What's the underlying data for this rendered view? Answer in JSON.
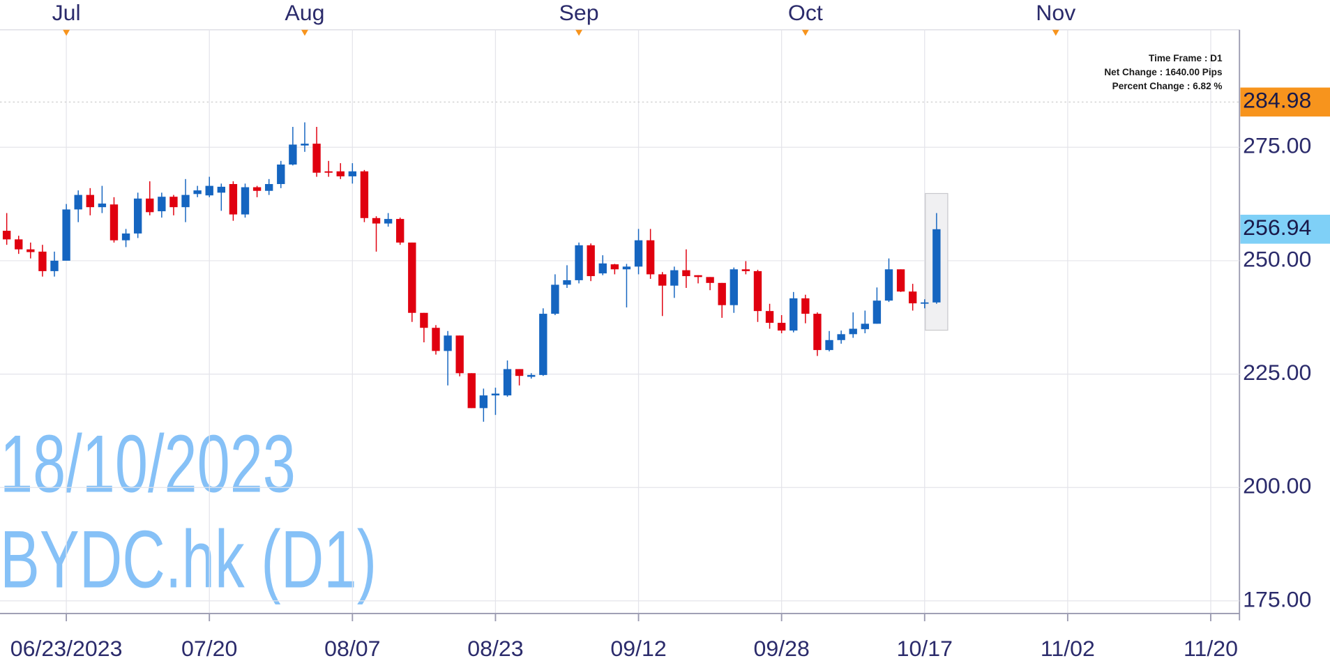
{
  "chart_data": {
    "type": "candlestick",
    "categories": [
      null,
      null,
      null,
      null,
      null,
      "06/23/2023",
      null,
      null,
      null,
      null,
      null,
      null,
      null,
      null,
      null,
      null,
      null,
      "07/20",
      null,
      null,
      null,
      null,
      null,
      null,
      null,
      null,
      null,
      null,
      null,
      "08/07",
      null,
      null,
      null,
      null,
      null,
      null,
      null,
      null,
      null,
      null,
      null,
      "08/23",
      null,
      null,
      null,
      null,
      null,
      null,
      null,
      null,
      null,
      null,
      null,
      "09/12",
      null,
      null,
      null,
      null,
      null,
      null,
      null,
      null,
      null,
      null,
      null,
      "09/28",
      null,
      null,
      null,
      null,
      null,
      null,
      null,
      null,
      null,
      null,
      null,
      "10/17",
      null,
      null,
      null,
      null,
      null,
      null,
      null,
      null,
      null,
      null,
      null,
      "11/02",
      null,
      null,
      null,
      null,
      null,
      null,
      null,
      null,
      null,
      null,
      null,
      "11/20"
    ],
    "months": [
      null,
      null,
      null,
      null,
      null,
      "Jul",
      null,
      null,
      null,
      null,
      null,
      null,
      null,
      null,
      null,
      null,
      null,
      null,
      null,
      null,
      null,
      null,
      null,
      null,
      null,
      "Aug",
      null,
      null,
      null,
      null,
      null,
      null,
      null,
      null,
      null,
      null,
      null,
      null,
      null,
      null,
      null,
      null,
      null,
      null,
      null,
      null,
      null,
      null,
      "Sep",
      null,
      null,
      null,
      null,
      null,
      null,
      null,
      null,
      null,
      null,
      null,
      null,
      null,
      null,
      null,
      null,
      null,
      null,
      "Oct",
      null,
      null,
      null,
      null,
      null,
      null,
      null,
      null,
      null,
      null,
      null,
      null,
      null,
      null,
      null,
      null,
      null,
      null,
      null,
      null,
      "Nov",
      null,
      null,
      null,
      null,
      null,
      null,
      null,
      null,
      null,
      null,
      null,
      null,
      null
    ],
    "open": [
      256.6,
      254.7,
      252.5,
      252,
      247.7,
      250,
      261.3,
      264.5,
      261.8,
      262.4,
      254.5,
      256,
      263.7,
      260.9,
      264.1,
      261.8,
      264.7,
      264.4,
      265,
      266.9,
      260.2,
      266.2,
      265.4,
      266.9,
      271.2,
      275.4,
      275.8,
      269.7,
      269.7,
      268.6,
      269.7,
      259.4,
      258.2,
      259.2,
      254,
      238.5,
      235.2,
      230.1,
      233.5,
      225.2,
      217.5,
      220.3,
      220.3,
      226.1,
      224.4,
      224.8,
      238.3,
      244.7,
      245.7,
      253.4,
      247.2,
      249.2,
      248.1,
      248.7,
      254.5,
      247,
      244.5,
      247.9,
      246.8,
      246.4,
      245.1,
      240.2,
      248.1,
      247.7,
      238.9,
      236.3,
      234.6,
      241.7,
      238.3,
      230.3,
      232.5,
      233.8,
      234.9,
      236.1,
      241.2,
      248.1,
      243.2,
      240.6,
      240.8,
      null,
      null,
      null,
      null,
      null,
      null,
      null,
      null,
      null,
      null,
      null,
      null,
      null,
      null,
      null,
      null,
      null,
      null,
      null,
      null,
      null,
      null,
      null
    ],
    "high": [
      260.5,
      255.5,
      254,
      253.5,
      252,
      262.5,
      265.5,
      266,
      266.5,
      264,
      257,
      265,
      267.5,
      265,
      264.5,
      268,
      266.5,
      268.5,
      267,
      267.5,
      267,
      266.5,
      268,
      272,
      279.5,
      280.5,
      279.5,
      272,
      271.5,
      271.5,
      270,
      259.8,
      260.5,
      259.5,
      254,
      238.5,
      235.8,
      234.5,
      233.5,
      225.2,
      221.8,
      222,
      228,
      226.1,
      225.2,
      239.5,
      247,
      249,
      254,
      253.8,
      251.2,
      249.3,
      249.3,
      257,
      257,
      247.5,
      248.7,
      252.5,
      246.8,
      246.4,
      245.1,
      248.5,
      249.9,
      248,
      240.5,
      238,
      243.1,
      242.5,
      238.6,
      234.5,
      234.6,
      238.6,
      239,
      244.1,
      250.5,
      248.1,
      244.9,
      241.5,
      260.5,
      null,
      null,
      null,
      null,
      null,
      null,
      null,
      null,
      null,
      null,
      null,
      null,
      null,
      null,
      null,
      null,
      null,
      null,
      null,
      null,
      null,
      null,
      null
    ],
    "low": [
      253.5,
      251.5,
      250.5,
      246.5,
      246.5,
      250,
      258.5,
      260,
      260.5,
      254,
      253,
      255,
      260,
      259.5,
      260,
      258.5,
      264,
      264,
      261,
      258.8,
      259.5,
      264,
      264.5,
      266,
      271,
      274,
      268.5,
      268.5,
      268,
      267,
      258.5,
      252,
      257.5,
      253.5,
      236.5,
      232,
      229.3,
      222.5,
      224.5,
      217.5,
      214.5,
      216,
      220,
      222.5,
      224,
      224.6,
      238,
      244,
      245,
      245.5,
      246.8,
      247,
      239.7,
      247,
      246,
      237.8,
      241.8,
      244,
      245,
      243.5,
      237.4,
      238.5,
      247,
      236.5,
      235,
      234,
      234.2,
      236.2,
      229,
      230,
      231.7,
      233,
      234,
      236.1,
      240.9,
      243.1,
      239,
      239.5,
      240.5,
      null,
      null,
      null,
      null,
      null,
      null,
      null,
      null,
      null,
      null,
      null,
      null,
      null,
      null,
      null,
      null,
      null,
      null,
      null,
      null,
      null,
      null,
      null
    ],
    "close": [
      254.7,
      252.5,
      251.9,
      247.7,
      250,
      261.3,
      264.5,
      261.8,
      262.6,
      254.5,
      256,
      263.7,
      260.7,
      264.1,
      261.8,
      264.5,
      265.5,
      266.5,
      266.3,
      260.2,
      266.2,
      265.4,
      266.9,
      271.2,
      275.6,
      275.8,
      269.4,
      269.4,
      268.6,
      269.7,
      259.4,
      258.2,
      259.2,
      254,
      238.5,
      235.2,
      230.1,
      233.5,
      225.2,
      217.5,
      220.3,
      220.7,
      226.1,
      224.6,
      224.8,
      238.3,
      244.7,
      245.7,
      253.4,
      246.6,
      249.4,
      248.1,
      248.7,
      254.5,
      247,
      244.5,
      247.9,
      246.6,
      246.4,
      245.1,
      240.2,
      248.1,
      247.7,
      238.9,
      236.3,
      234.6,
      241.7,
      238.3,
      230.3,
      232.5,
      233.8,
      235,
      236.1,
      241.2,
      248.1,
      243.2,
      240.6,
      240.8,
      256.94,
      null,
      null,
      null,
      null,
      null,
      null,
      null,
      null,
      null,
      null,
      null,
      null,
      null,
      null,
      null,
      null,
      null,
      null,
      null,
      null,
      null,
      null,
      null
    ],
    "up_color": "#1565c0",
    "down_color": "#e0000f",
    "ylim": [
      172.2,
      300.9
    ],
    "yticks": [
      {
        "value": 175,
        "label": "175.00"
      },
      {
        "value": 200,
        "label": "200.00"
      },
      {
        "value": 225,
        "label": "225.00"
      },
      {
        "value": 250,
        "label": "250.00"
      },
      {
        "value": 275,
        "label": "275.00"
      }
    ],
    "grid": true,
    "price_tags": [
      {
        "value": 284.98,
        "color": "#f7941d"
      },
      {
        "value": 256.94,
        "color": "#7fd0f7"
      }
    ],
    "info": [
      "Time Frame : D1",
      "Net Change : 1640.00 Pips",
      "Percent Change : 6.82 %"
    ],
    "watermark": [
      "18/10/2023",
      "BYDC.hk (D1)"
    ]
  }
}
